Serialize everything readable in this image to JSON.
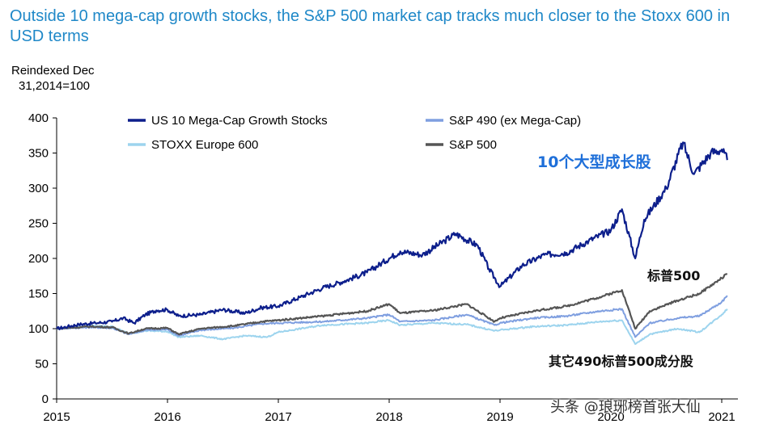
{
  "title": "Outside 10 mega-cap growth stocks, the S&P 500 market cap tracks much closer to the Stoxx 600 in USD terms",
  "y_axis_label_line1": "Reindexed Dec",
  "y_axis_label_line2": "31,2014=100",
  "annotations": {
    "growth": "10个大型成长股",
    "sp500": "标普500",
    "sp490": "其它490标普500成分股"
  },
  "watermark": "头条 @琅琊榜首张大仙",
  "colors": {
    "us10": "#0d1f8c",
    "sp490": "#7f9fe0",
    "stoxx": "#9dd4ee",
    "sp500": "#555555",
    "axis": "#000000",
    "title": "#1f88c8"
  },
  "chart_data": {
    "type": "line",
    "title": "Outside 10 mega-cap growth stocks, the S&P 500 market cap tracks much closer to the Stoxx 600 in USD terms",
    "xlabel": "",
    "ylabel": "Reindexed Dec 31,2014=100",
    "xlim": [
      2015.0,
      2021.1
    ],
    "ylim": [
      0,
      400
    ],
    "yticks": [
      0,
      50,
      100,
      150,
      200,
      250,
      300,
      350,
      400
    ],
    "xticks": [
      "2015",
      "2016",
      "2017",
      "2018",
      "2019",
      "2020",
      "2021"
    ],
    "legend_position": "top",
    "series": [
      {
        "name": "US 10 Mega-Cap Growth Stocks",
        "x": [
          2015.0,
          2015.1,
          2015.2,
          2015.35,
          2015.5,
          2015.6,
          2015.7,
          2015.8,
          2015.9,
          2016.0,
          2016.1,
          2016.3,
          2016.5,
          2016.7,
          2016.85,
          2017.0,
          2017.2,
          2017.4,
          2017.6,
          2017.8,
          2018.0,
          2018.1,
          2018.3,
          2018.5,
          2018.6,
          2018.8,
          2018.9,
          2019.0,
          2019.2,
          2019.4,
          2019.6,
          2019.8,
          2020.0,
          2020.1,
          2020.22,
          2020.3,
          2020.5,
          2020.65,
          2020.75,
          2020.9,
          2021.0,
          2021.05
        ],
        "values": [
          100,
          103,
          106,
          108,
          110,
          115,
          108,
          120,
          126,
          127,
          118,
          120,
          127,
          122,
          130,
          132,
          145,
          158,
          168,
          180,
          200,
          210,
          205,
          225,
          235,
          218,
          185,
          160,
          190,
          205,
          208,
          225,
          240,
          270,
          200,
          255,
          300,
          365,
          320,
          350,
          355,
          340
        ]
      },
      {
        "name": "S&P 490 (ex Mega-Cap)",
        "x": [
          2015.0,
          2015.3,
          2015.5,
          2015.65,
          2015.8,
          2016.0,
          2016.1,
          2016.3,
          2016.6,
          2016.85,
          2017.0,
          2017.4,
          2017.8,
          2018.0,
          2018.1,
          2018.4,
          2018.7,
          2018.95,
          2019.0,
          2019.3,
          2019.6,
          2019.9,
          2020.1,
          2020.22,
          2020.35,
          2020.6,
          2020.8,
          2021.0,
          2021.05
        ],
        "values": [
          100,
          102,
          101,
          92,
          98,
          99,
          90,
          98,
          101,
          107,
          108,
          110,
          115,
          120,
          110,
          112,
          120,
          105,
          108,
          115,
          118,
          125,
          128,
          88,
          108,
          115,
          118,
          138,
          147
        ]
      },
      {
        "name": "STOXX Europe 600",
        "x": [
          2015.0,
          2015.3,
          2015.5,
          2015.65,
          2015.8,
          2016.0,
          2016.1,
          2016.3,
          2016.5,
          2016.7,
          2016.9,
          2017.0,
          2017.4,
          2017.8,
          2018.0,
          2018.1,
          2018.4,
          2018.7,
          2018.95,
          2019.0,
          2019.3,
          2019.6,
          2019.9,
          2020.1,
          2020.22,
          2020.35,
          2020.6,
          2020.8,
          2021.0,
          2021.05
        ],
        "values": [
          100,
          104,
          103,
          93,
          97,
          96,
          88,
          90,
          85,
          90,
          88,
          95,
          105,
          108,
          112,
          105,
          108,
          106,
          97,
          98,
          103,
          105,
          110,
          112,
          78,
          92,
          100,
          95,
          120,
          128
        ]
      },
      {
        "name": "S&P 500",
        "x": [
          2015.0,
          2015.3,
          2015.5,
          2015.65,
          2015.8,
          2016.0,
          2016.1,
          2016.3,
          2016.6,
          2016.85,
          2017.0,
          2017.4,
          2017.8,
          2018.0,
          2018.1,
          2018.4,
          2018.7,
          2018.95,
          2019.0,
          2019.3,
          2019.6,
          2019.9,
          2020.1,
          2020.22,
          2020.35,
          2020.6,
          2020.8,
          2021.0,
          2021.05
        ],
        "values": [
          100,
          103,
          102,
          93,
          100,
          101,
          92,
          100,
          104,
          110,
          112,
          118,
          125,
          135,
          122,
          126,
          135,
          110,
          115,
          125,
          132,
          145,
          155,
          100,
          125,
          140,
          150,
          172,
          178
        ]
      }
    ]
  }
}
